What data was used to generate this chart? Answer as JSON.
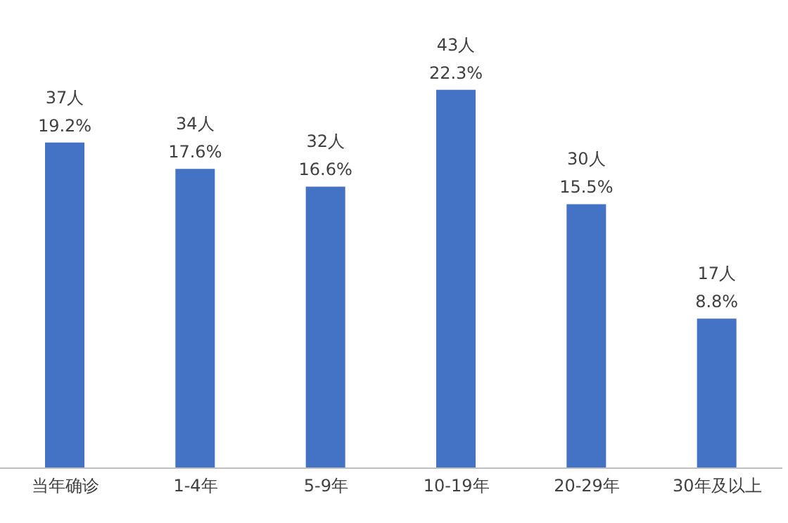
{
  "chart_data": {
    "type": "bar",
    "categories": [
      "当年确诊",
      "1-4年",
      "5-9年",
      "10-19年",
      "20-29年",
      "30年及以上"
    ],
    "values": [
      37,
      34,
      32,
      43,
      30,
      17
    ],
    "value_labels": [
      "37人\n19.2%",
      "34人\n17.6%",
      "32人\n16.6%",
      "43人\n22.3%",
      "30人\n15.5%",
      "17人\n8.8%"
    ],
    "color": "#4472c4",
    "grid": false,
    "legend": false
  }
}
